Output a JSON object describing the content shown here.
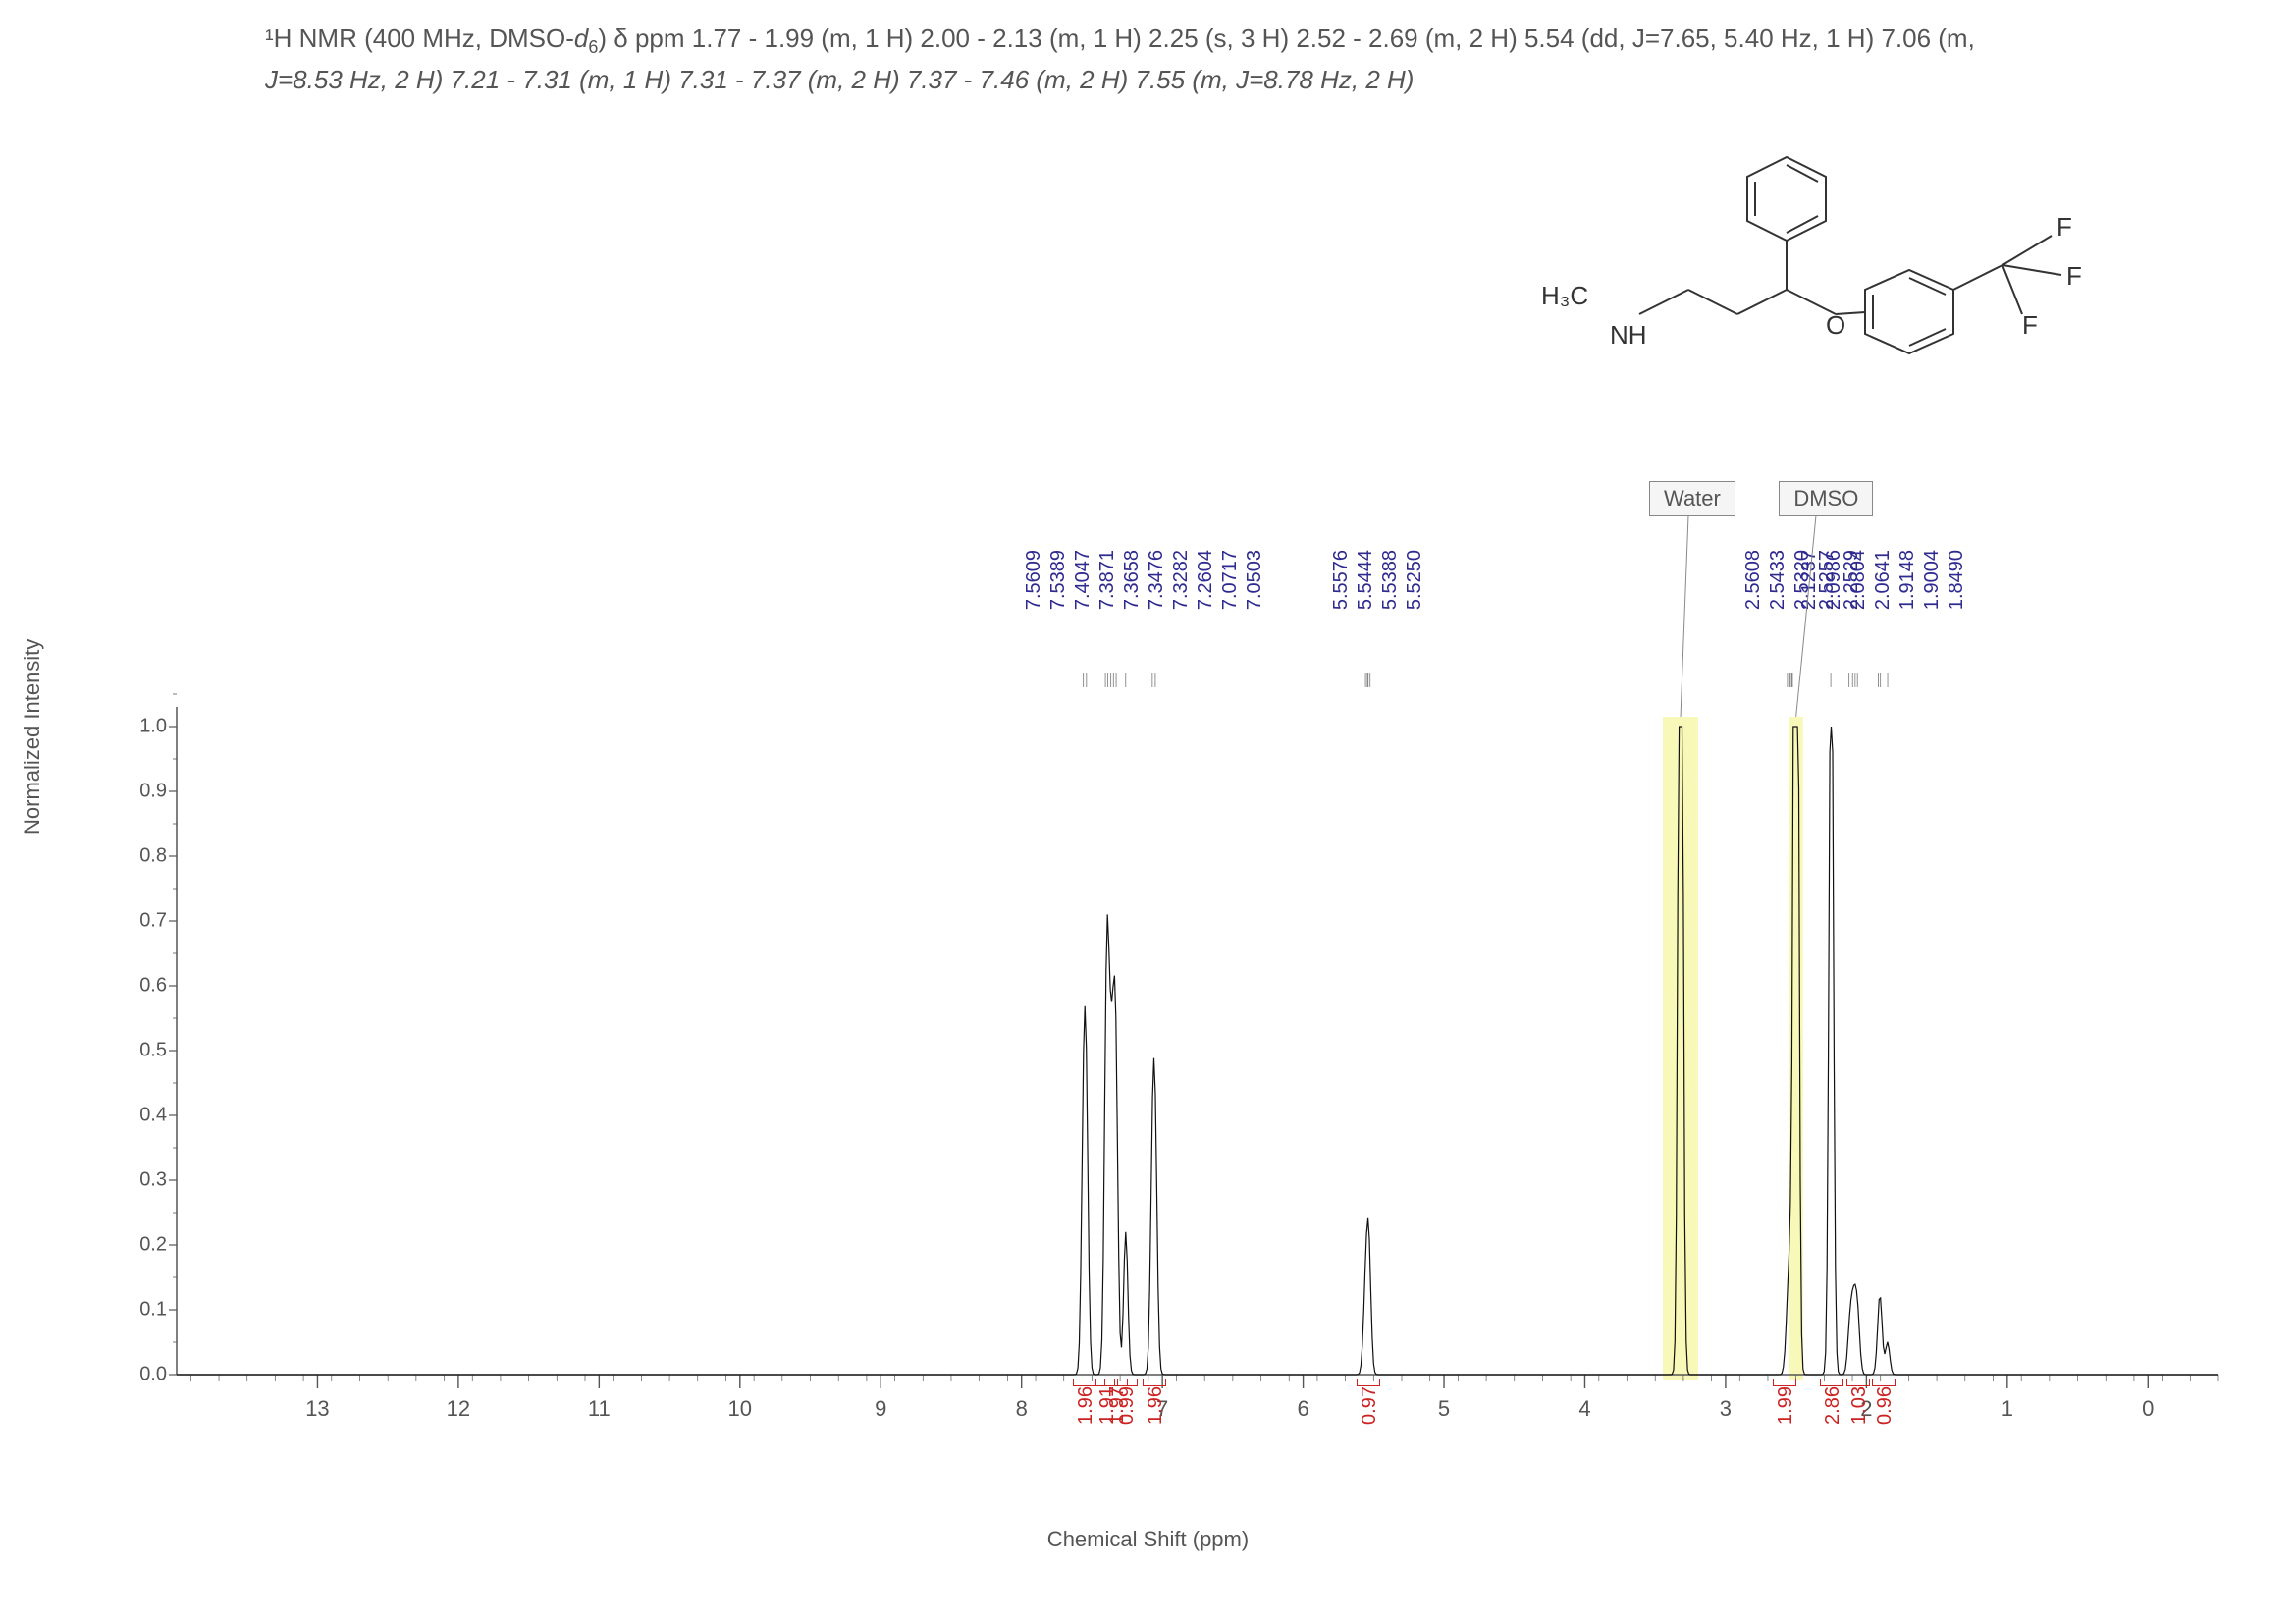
{
  "header": {
    "line1_prefix": "¹H NMR (400 MHz, DMSO-",
    "line1_italic": "d",
    "line1_sub": "6",
    "line1_rest": ") δ ppm 1.77 - 1.99 (m, 1 H) 2.00 - 2.13 (m, 1 H) 2.25 (s, 3 H) 2.52 - 2.69 (m, 2 H) 5.54 (dd,  J=7.65, 5.40 Hz, 1 H) 7.06 (m,",
    "line2": "J=8.53 Hz, 2 H) 7.21 - 7.31 (m, 1 H) 7.31 - 7.37 (m, 2 H) 7.37 - 7.46 (m, 2 H) 7.55 (m,  J=8.78 Hz, 2 H)"
  },
  "molecule": {
    "h3c_label": "H₃C",
    "nh_label": "NH",
    "o_label": "O",
    "f_labels": [
      "F",
      "F",
      "F"
    ]
  },
  "solvent": {
    "water": "Water",
    "dmso": "DMSO"
  },
  "chart": {
    "type": "nmr_spectrum",
    "y_label": "Normalized Intensity",
    "x_label": "Chemical Shift (ppm)",
    "background_color": "#ffffff",
    "axis_color": "#555555",
    "peak_label_color": "#2e2a8f",
    "integral_color": "#cc2222",
    "highlight_color": "#f5f59a",
    "x_range": [
      14,
      -0.5
    ],
    "y_range": [
      0,
      1.0
    ],
    "y_ticks": [
      0,
      0.1,
      0.2,
      0.3,
      0.4,
      0.5,
      0.6,
      0.7,
      0.8,
      0.9,
      1.0
    ],
    "x_ticks": [
      13,
      12,
      11,
      10,
      9,
      8,
      7,
      6,
      5,
      4,
      3,
      2,
      1,
      0
    ],
    "peak_label_groups": [
      {
        "center_ppm": 7.3,
        "labels": [
          "7.5609",
          "7.5389",
          "7.4047",
          "7.3871",
          "7.3658",
          "7.3476",
          "7.3282",
          "7.2604",
          "7.0717",
          "7.0503"
        ]
      },
      {
        "center_ppm": 5.54,
        "labels": [
          "5.5576",
          "5.5444",
          "5.5388",
          "5.5250"
        ]
      },
      {
        "center_ppm": 2.54,
        "labels": [
          "2.5608",
          "2.5433",
          "2.5320",
          "2.5257",
          "2.2529"
        ]
      },
      {
        "center_ppm": 2.0,
        "labels": [
          "2.1237",
          "2.0986",
          "2.0804",
          "2.0641",
          "1.9148",
          "1.9004",
          "1.8490"
        ]
      }
    ],
    "integrals": [
      {
        "ppm": 7.55,
        "value": "1.96"
      },
      {
        "ppm": 7.4,
        "value": "1.91"
      },
      {
        "ppm": 7.33,
        "value": "1.97"
      },
      {
        "ppm": 7.26,
        "value": "0.99"
      },
      {
        "ppm": 7.06,
        "value": "1.96"
      },
      {
        "ppm": 5.54,
        "value": "0.97"
      },
      {
        "ppm": 2.58,
        "value": "1.99"
      },
      {
        "ppm": 2.25,
        "value": "2.86"
      },
      {
        "ppm": 2.06,
        "value": "1.03"
      },
      {
        "ppm": 1.88,
        "value": "0.96"
      }
    ],
    "highlights": [
      {
        "ppm_center": 3.32,
        "width_ppm": 0.25
      },
      {
        "ppm_center": 2.5,
        "width_ppm": 0.1
      }
    ],
    "peaks": [
      {
        "ppm": 7.56,
        "h": 0.35
      },
      {
        "ppm": 7.54,
        "h": 0.36
      },
      {
        "ppm": 7.4,
        "h": 0.32
      },
      {
        "ppm": 7.39,
        "h": 0.33
      },
      {
        "ppm": 7.37,
        "h": 0.28
      },
      {
        "ppm": 7.35,
        "h": 0.3
      },
      {
        "ppm": 7.33,
        "h": 0.42
      },
      {
        "ppm": 7.26,
        "h": 0.22
      },
      {
        "ppm": 7.07,
        "h": 0.3
      },
      {
        "ppm": 7.05,
        "h": 0.31
      },
      {
        "ppm": 5.56,
        "h": 0.1
      },
      {
        "ppm": 5.54,
        "h": 0.12
      },
      {
        "ppm": 5.53,
        "h": 0.1
      },
      {
        "ppm": 3.32,
        "h": 1.8
      },
      {
        "ppm": 2.56,
        "h": 0.08
      },
      {
        "ppm": 2.54,
        "h": 0.09
      },
      {
        "ppm": 2.53,
        "h": 0.1
      },
      {
        "ppm": 2.5,
        "h": 2.2
      },
      {
        "ppm": 2.25,
        "h": 1.2
      },
      {
        "ppm": 2.12,
        "h": 0.06
      },
      {
        "ppm": 2.1,
        "h": 0.07
      },
      {
        "ppm": 2.08,
        "h": 0.08
      },
      {
        "ppm": 2.06,
        "h": 0.07
      },
      {
        "ppm": 1.91,
        "h": 0.06
      },
      {
        "ppm": 1.9,
        "h": 0.07
      },
      {
        "ppm": 1.85,
        "h": 0.05
      }
    ]
  }
}
